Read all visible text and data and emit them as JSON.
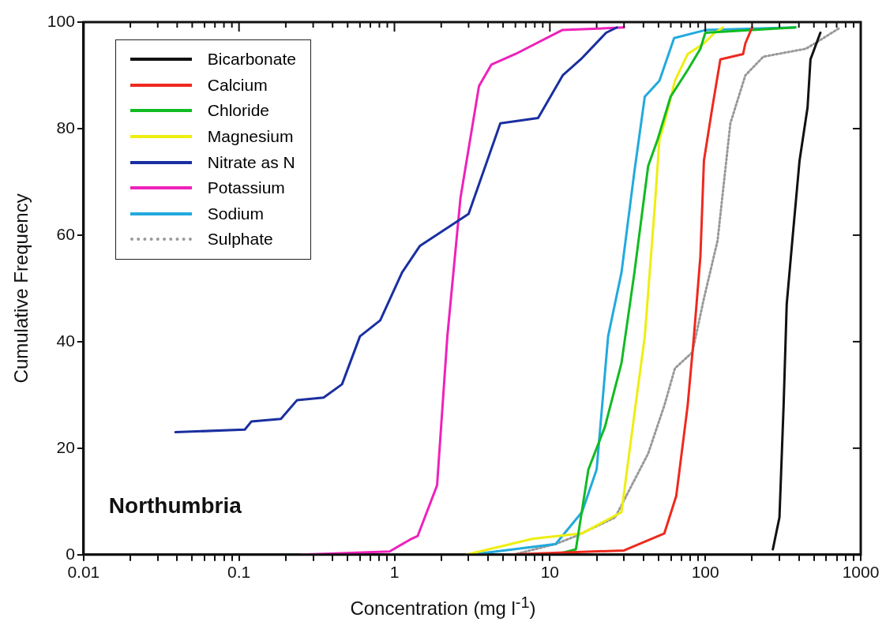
{
  "chart_data": {
    "type": "line",
    "xlabel": "Concentration (mg l$^{-1}$)",
    "ylabel": "Cumulative Frequency",
    "log": "x",
    "grid": false,
    "legend": "top left",
    "marker": "none",
    "xlim": [
      0.01,
      1000
    ],
    "ylim": [
      0,
      100
    ],
    "xticks": [
      0.01,
      {
        "value": 0.02,
        "label": null
      },
      {
        "value": 0.03,
        "label": null
      },
      {
        "value": 0.04,
        "label": null
      },
      {
        "value": 0.05,
        "label": null
      },
      {
        "value": 0.06,
        "label": null
      },
      {
        "value": 0.07,
        "label": null
      },
      {
        "value": 0.08,
        "label": null
      },
      {
        "value": 0.09,
        "label": null
      },
      0.1,
      {
        "value": 0.2,
        "label": null
      },
      {
        "value": 0.3,
        "label": null
      },
      {
        "value": 0.4,
        "label": null
      },
      {
        "value": 0.5,
        "label": null
      },
      {
        "value": 0.6,
        "label": null
      },
      {
        "value": 0.7,
        "label": null
      },
      {
        "value": 0.8,
        "label": null
      },
      {
        "value": 0.9,
        "label": null
      },
      1,
      {
        "value": 2,
        "label": null
      },
      {
        "value": 3,
        "label": null
      },
      {
        "value": 4,
        "label": null
      },
      {
        "value": 5,
        "label": null
      },
      {
        "value": 6,
        "label": null
      },
      {
        "value": 7,
        "label": null
      },
      {
        "value": 8,
        "label": null
      },
      {
        "value": 9,
        "label": null
      },
      10,
      {
        "value": 20,
        "label": null
      },
      {
        "value": 30,
        "label": null
      },
      {
        "value": 40,
        "label": null
      },
      {
        "value": 50,
        "label": null
      },
      {
        "value": 60,
        "label": null
      },
      {
        "value": 70,
        "label": null
      },
      {
        "value": 80,
        "label": null
      },
      {
        "value": 90,
        "label": null
      },
      100,
      {
        "value": 200,
        "label": null
      },
      {
        "value": 300,
        "label": null
      },
      {
        "value": 400,
        "label": null
      },
      {
        "value": 500,
        "label": null
      },
      {
        "value": 600,
        "label": null
      },
      {
        "value": 700,
        "label": null
      },
      {
        "value": 800,
        "label": null
      },
      {
        "value": 900,
        "label": null
      },
      1000
    ],
    "yticks": [
      0,
      20,
      40,
      60,
      80,
      100
    ],
    "annotations": [
      "Northumbria"
    ],
    "series": [
      {
        "name": "Bicarbonate",
        "color": "#111111",
        "x": [
          272,
          300,
          319,
          334,
          363,
          404,
          455,
          475,
          550
        ],
        "values": [
          1,
          7,
          28,
          47,
          59,
          74,
          84,
          93,
          98
        ]
      },
      {
        "name": "Calcium",
        "color": "#ee2a1e",
        "x": [
          5.2,
          30,
          54.5,
          65,
          77,
          84.5,
          93,
          98,
          111,
          125,
          175,
          181,
          200
        ],
        "values": [
          0,
          0.8,
          4,
          11,
          28,
          41,
          56,
          74,
          84,
          93,
          94,
          96,
          99
        ]
      },
      {
        "name": "Chloride",
        "color": "#11bb22",
        "x": [
          10.9,
          14.7,
          17.7,
          22.6,
          28.9,
          35,
          42.9,
          49.4,
          59.8,
          77,
          93,
          100,
          380
        ],
        "values": [
          0,
          1,
          16,
          24,
          36,
          53,
          73,
          78,
          86,
          91,
          95,
          98,
          99
        ]
      },
      {
        "name": "Magnesium",
        "color": "#eeee11",
        "x": [
          2.9,
          7.8,
          16.1,
          28.9,
          33.4,
          40.8,
          47.2,
          50.7,
          54.5,
          63.8,
          77,
          98,
          115,
          130
        ],
        "values": [
          0,
          3,
          4,
          8,
          22,
          41,
          65,
          78,
          81,
          89,
          94,
          96,
          98,
          99
        ]
      },
      {
        "name": "Nitrate as N",
        "color": "#1a2fa0",
        "x": [
          0.039,
          0.109,
          0.12,
          0.186,
          0.236,
          0.35,
          0.46,
          0.6,
          0.81,
          1.12,
          1.46,
          3,
          4.8,
          8.4,
          12.1,
          15.8,
          23,
          27
        ],
        "values": [
          23,
          23.5,
          25,
          25.5,
          29,
          29.5,
          32,
          41,
          44,
          53,
          58,
          64,
          81,
          82,
          90,
          93,
          98,
          99
        ]
      },
      {
        "name": "Potassium",
        "color": "#ee22bb",
        "x": [
          0.25,
          0.93,
          1.29,
          1.41,
          1.88,
          2.19,
          2.66,
          3.5,
          4.2,
          6,
          12,
          30
        ],
        "values": [
          0,
          0.6,
          3,
          3.5,
          13,
          41,
          67,
          88,
          92,
          94,
          98.5,
          99
        ]
      },
      {
        "name": "Sodium",
        "color": "#22aadd",
        "x": [
          3.1,
          10.9,
          16.1,
          20,
          23.7,
          28.9,
          35,
          40.8,
          50.7,
          63,
          100,
          380
        ],
        "values": [
          0,
          2,
          8,
          16,
          41,
          53,
          72,
          86,
          89,
          97,
          98.5,
          99
        ]
      },
      {
        "name": "Sulphate",
        "color": "#999999",
        "line_style": "dotted",
        "x": [
          5.8,
          10.9,
          14.7,
          26.3,
          42.9,
          54.5,
          63.8,
          82.6,
          97.8,
          120,
          145,
          181,
          236,
          444,
          507,
          740
        ],
        "values": [
          0,
          2,
          3.5,
          7,
          19,
          28,
          35,
          38,
          48,
          59,
          81,
          90,
          93.5,
          95,
          96,
          99
        ]
      }
    ]
  }
}
